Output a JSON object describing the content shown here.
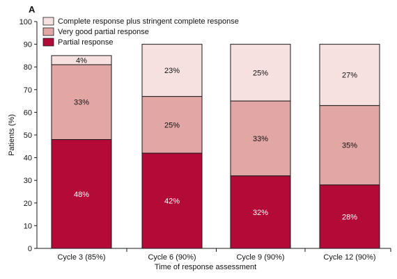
{
  "panel_label": "A",
  "colors": {
    "complete": "#f7e1e0",
    "very_good": "#e2a6a4",
    "partial": "#b30a38",
    "stroke": "#1a1a1a"
  },
  "chart_data": {
    "type": "bar",
    "stacked": true,
    "categories": [
      "Cycle 3 (85%)",
      "Cycle 6 (90%)",
      "Cycle 9 (90%)",
      "Cycle 12 (90%)"
    ],
    "series": [
      {
        "name": "Partial response",
        "key": "partial",
        "values": [
          48,
          42,
          32,
          28
        ],
        "labels": [
          "48%",
          "42%",
          "32%",
          "28%"
        ]
      },
      {
        "name": "Very good partial response",
        "key": "very_good",
        "values": [
          33,
          25,
          33,
          35
        ],
        "labels": [
          "33%",
          "25%",
          "33%",
          "35%"
        ]
      },
      {
        "name": "Complete response plus stringent complete response",
        "key": "complete",
        "values": [
          4,
          23,
          25,
          27
        ],
        "labels": [
          "4%",
          "23%",
          "25%",
          "27%"
        ]
      }
    ],
    "legend_order": [
      "complete",
      "very_good",
      "partial"
    ],
    "xlabel": "Time of response assessment",
    "ylabel": "Patients (%)",
    "ylim": [
      0,
      100
    ],
    "yticks": [
      0,
      10,
      20,
      30,
      40,
      50,
      60,
      70,
      80,
      90,
      100
    ],
    "legend_position": "top-left",
    "grid": false
  }
}
